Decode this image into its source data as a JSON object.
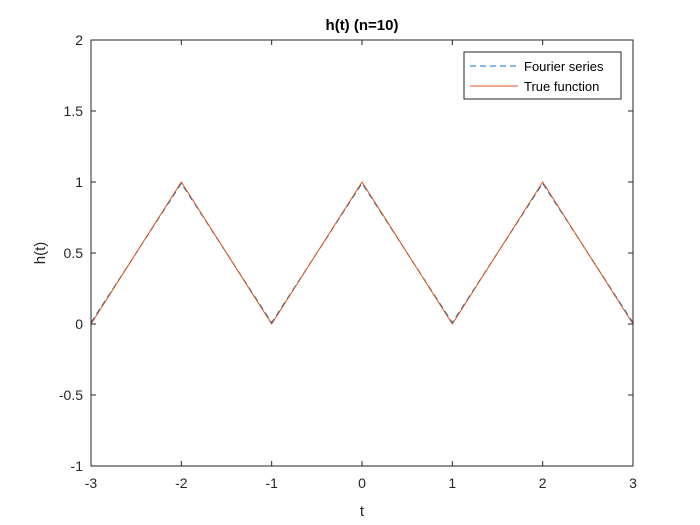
{
  "chart_data": {
    "type": "line",
    "title": "h(t) (n=10)",
    "xlabel": "t",
    "ylabel": "h(t)",
    "xlim": [
      -3,
      3
    ],
    "ylim": [
      -1,
      2
    ],
    "xticks": [
      -3,
      -2,
      -1,
      0,
      1,
      2,
      3
    ],
    "yticks": [
      -1,
      -0.5,
      0,
      0.5,
      1,
      1.5,
      2
    ],
    "xtick_labels": [
      "-3",
      "-2",
      "-1",
      "0",
      "1",
      "2",
      "3"
    ],
    "ytick_labels": [
      "-1",
      "-0.5",
      "0",
      "0.5",
      "1",
      "1.5",
      "2"
    ],
    "grid": false,
    "legend_position": "top-right",
    "series": [
      {
        "name": "Fourier series",
        "style": "dashed",
        "color": "#0072BD",
        "x": [
          -3,
          -2,
          -1,
          0,
          1,
          2,
          3
        ],
        "y": [
          0.01,
          0.99,
          0.01,
          0.99,
          0.01,
          0.99,
          0.01
        ]
      },
      {
        "name": "True function",
        "style": "solid",
        "color": "#D95319",
        "x": [
          -3,
          -2,
          -1,
          0,
          1,
          2,
          3
        ],
        "y": [
          0,
          1,
          0,
          1,
          0,
          1,
          0
        ]
      }
    ]
  }
}
